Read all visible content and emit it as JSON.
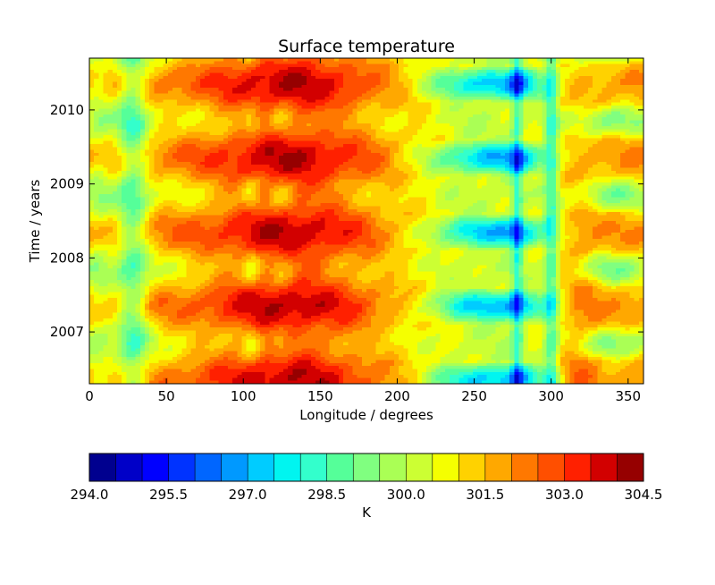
{
  "chart_data": {
    "type": "heatmap",
    "title": "Surface temperature",
    "xlabel": "Longitude / degrees",
    "ylabel": "Time / years",
    "xlim": [
      0,
      360
    ],
    "ylim": [
      2006.3,
      2010.7
    ],
    "x_ticks": [
      0,
      50,
      100,
      150,
      200,
      250,
      300,
      350
    ],
    "y_ticks": [
      2007,
      2008,
      2009,
      2010
    ],
    "grid": false,
    "colorbar": {
      "label": "K",
      "orientation": "horizontal",
      "placement": "bottom",
      "range": [
        294.0,
        304.5
      ],
      "ticks": [
        "294.0",
        "295.5",
        "297.0",
        "298.5",
        "300.0",
        "301.5",
        "303.0",
        "304.5"
      ],
      "levels": 21,
      "colors": [
        "#00008f",
        "#0000c8",
        "#0000ff",
        "#0033ff",
        "#0066ff",
        "#0099ff",
        "#00ccff",
        "#00f5f0",
        "#33ffcc",
        "#55ff99",
        "#80ff80",
        "#aaff55",
        "#ccff33",
        "#f5ff00",
        "#ffd200",
        "#ffa800",
        "#ff7800",
        "#ff4f00",
        "#ff2000",
        "#d20000",
        "#960000"
      ]
    }
  }
}
